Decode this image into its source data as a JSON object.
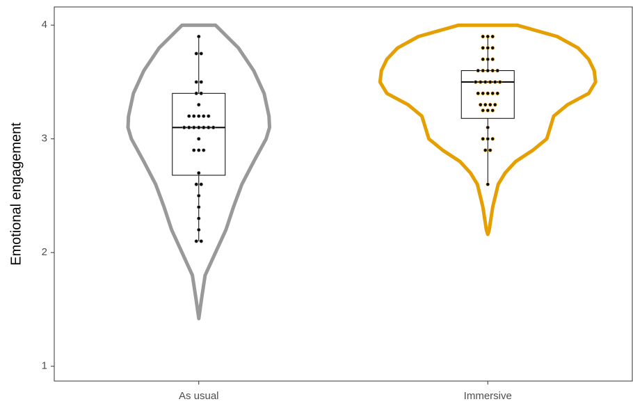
{
  "chart_data": {
    "type": "violin",
    "ylabel": "Emotional engagement",
    "categories": [
      "As usual",
      "Immersive"
    ],
    "colors": [
      "#999999",
      "#E69F00"
    ],
    "ylim": [
      0.87,
      4.16
    ],
    "yticks": [
      1,
      2,
      3,
      4
    ],
    "violin_y": [
      [
        4.0,
        3.8,
        3.6,
        3.4,
        3.2,
        3.1,
        3.0,
        2.8,
        2.6,
        2.4,
        2.2,
        2.0,
        1.8,
        1.6,
        1.42
      ],
      [
        4.0,
        3.9,
        3.8,
        3.7,
        3.6,
        3.5,
        3.4,
        3.3,
        3.2,
        3.1,
        3.0,
        2.9,
        2.8,
        2.7,
        2.6,
        2.4,
        2.2,
        2.16
      ]
    ],
    "violin_width": [
      [
        0.058,
        0.137,
        0.19,
        0.226,
        0.243,
        0.245,
        0.233,
        0.19,
        0.149,
        0.12,
        0.094,
        0.058,
        0.022,
        0.01,
        0.0
      ],
      [
        0.101,
        0.24,
        0.312,
        0.349,
        0.368,
        0.373,
        0.349,
        0.276,
        0.228,
        0.216,
        0.204,
        0.156,
        0.096,
        0.06,
        0.036,
        0.017,
        0.005,
        0.0
      ]
    ],
    "boxes": [
      {
        "whisker_low": 2.1,
        "q1": 2.68,
        "median": 3.1,
        "q3": 3.4,
        "whisker_high": 3.9
      },
      {
        "whisker_low": 2.6,
        "q1": 3.18,
        "median": 3.5,
        "q3": 3.6,
        "whisker_high": 3.9
      }
    ],
    "points": [
      [
        3.9,
        3.75,
        3.75,
        3.5,
        3.5,
        3.4,
        3.4,
        3.3,
        3.2,
        3.2,
        3.2,
        3.2,
        3.2,
        3.1,
        3.1,
        3.1,
        3.1,
        3.1,
        3.1,
        3.1,
        3.0,
        2.9,
        2.9,
        2.9,
        2.7,
        2.6,
        2.6,
        2.5,
        2.4,
        2.3,
        2.2,
        2.1,
        2.1
      ],
      [
        3.9,
        3.9,
        3.9,
        3.8,
        3.8,
        3.8,
        3.7,
        3.7,
        3.7,
        3.6,
        3.6,
        3.6,
        3.6,
        3.6,
        3.5,
        3.5,
        3.5,
        3.5,
        3.5,
        3.5,
        3.4,
        3.4,
        3.4,
        3.4,
        3.4,
        3.3,
        3.3,
        3.3,
        3.3,
        3.25,
        3.25,
        3.25,
        3.1,
        3.0,
        3.0,
        3.0,
        2.9,
        2.9,
        2.6
      ]
    ]
  }
}
